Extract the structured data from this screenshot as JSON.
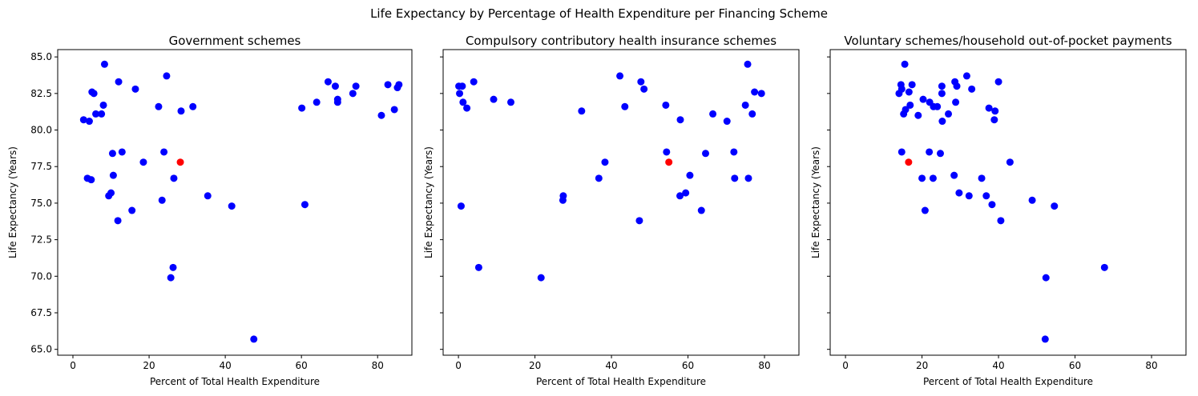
{
  "figure": {
    "suptitle": "Life Expectancy by Percentage of Health Expenditure per Financing Scheme",
    "colors": {
      "points": "#0000ff",
      "highlight": "#ff0000",
      "axes": "#000000"
    }
  },
  "chart_data": [
    {
      "type": "scatter",
      "title": "Government schemes",
      "xlabel": "Percent of Total Health Expenditure",
      "ylabel": "Life Expectancy (Years)",
      "xlim": [
        -4,
        89
      ],
      "ylim": [
        64.6,
        85.5
      ],
      "xticks": [
        0,
        20,
        40,
        60,
        80
      ],
      "yticks": [
        65.0,
        67.5,
        70.0,
        72.5,
        75.0,
        77.5,
        80.0,
        82.5,
        85.0
      ],
      "show_yticklabels": true,
      "highlight": {
        "x": 28.2,
        "y": 77.8
      },
      "points": [
        [
          2.8,
          80.7
        ],
        [
          4.3,
          80.6
        ],
        [
          5.0,
          82.6
        ],
        [
          5.5,
          82.5
        ],
        [
          6.0,
          81.1
        ],
        [
          7.5,
          81.1
        ],
        [
          8.0,
          81.7
        ],
        [
          8.3,
          84.5
        ],
        [
          3.8,
          76.7
        ],
        [
          4.8,
          76.6
        ],
        [
          9.4,
          75.5
        ],
        [
          10.0,
          75.7
        ],
        [
          10.4,
          78.4
        ],
        [
          10.6,
          76.9
        ],
        [
          11.8,
          73.8
        ],
        [
          12.0,
          83.3
        ],
        [
          12.9,
          78.5
        ],
        [
          15.5,
          74.5
        ],
        [
          16.4,
          82.8
        ],
        [
          18.5,
          77.8
        ],
        [
          22.5,
          81.6
        ],
        [
          23.4,
          75.2
        ],
        [
          23.9,
          78.5
        ],
        [
          24.6,
          83.7
        ],
        [
          25.7,
          69.9
        ],
        [
          26.3,
          70.6
        ],
        [
          26.5,
          76.7
        ],
        [
          28.4,
          81.3
        ],
        [
          31.5,
          81.6
        ],
        [
          35.4,
          75.5
        ],
        [
          41.7,
          74.8
        ],
        [
          47.5,
          65.7
        ],
        [
          60.1,
          81.5
        ],
        [
          60.9,
          74.9
        ],
        [
          64.0,
          81.9
        ],
        [
          67.0,
          83.3
        ],
        [
          68.9,
          83.0
        ],
        [
          69.5,
          82.1
        ],
        [
          69.5,
          81.9
        ],
        [
          73.5,
          82.5
        ],
        [
          74.3,
          83.0
        ],
        [
          81.0,
          81.0
        ],
        [
          82.7,
          83.1
        ],
        [
          84.4,
          81.4
        ],
        [
          85.2,
          82.9
        ],
        [
          85.6,
          83.1
        ]
      ]
    },
    {
      "type": "scatter",
      "title": "Compulsory contributory health insurance schemes",
      "xlabel": "Percent of Total Health Expenditure",
      "ylabel": "Life Expectancy (Years)",
      "xlim": [
        -4,
        89
      ],
      "ylim": [
        64.6,
        85.5
      ],
      "xticks": [
        0,
        20,
        40,
        60,
        80
      ],
      "yticks": [
        65.0,
        67.5,
        70.0,
        72.5,
        75.0,
        77.5,
        80.0,
        82.5,
        85.0
      ],
      "show_yticklabels": false,
      "highlight": {
        "x": 55.0,
        "y": 77.8
      },
      "points": [
        [
          0.1,
          83.0
        ],
        [
          0.3,
          82.5
        ],
        [
          0.7,
          74.8
        ],
        [
          1.0,
          83.0
        ],
        [
          1.2,
          81.9
        ],
        [
          2.2,
          81.5
        ],
        [
          4.0,
          83.3
        ],
        [
          5.3,
          70.6
        ],
        [
          9.2,
          82.1
        ],
        [
          13.7,
          81.9
        ],
        [
          21.6,
          69.9
        ],
        [
          27.3,
          75.2
        ],
        [
          27.4,
          75.5
        ],
        [
          32.2,
          81.3
        ],
        [
          36.7,
          76.7
        ],
        [
          38.3,
          77.8
        ],
        [
          42.2,
          83.7
        ],
        [
          43.5,
          81.6
        ],
        [
          47.3,
          73.8
        ],
        [
          47.7,
          83.3
        ],
        [
          48.5,
          82.8
        ],
        [
          54.2,
          81.7
        ],
        [
          54.4,
          78.5
        ],
        [
          58.0,
          80.7
        ],
        [
          57.9,
          75.5
        ],
        [
          59.4,
          75.7
        ],
        [
          60.5,
          76.9
        ],
        [
          63.5,
          74.5
        ],
        [
          64.6,
          78.4
        ],
        [
          66.5,
          81.1
        ],
        [
          70.2,
          80.6
        ],
        [
          72.0,
          78.5
        ],
        [
          72.2,
          76.7
        ],
        [
          75.0,
          81.7
        ],
        [
          75.6,
          84.5
        ],
        [
          75.8,
          76.7
        ],
        [
          76.8,
          81.1
        ],
        [
          77.4,
          82.6
        ],
        [
          79.2,
          82.5
        ]
      ]
    },
    {
      "type": "scatter",
      "title": "Voluntary schemes/household out-of-pocket payments",
      "xlabel": "Percent of Total Health Expenditure",
      "ylabel": "Life Expectancy (Years)",
      "xlim": [
        -4,
        89
      ],
      "ylim": [
        64.6,
        85.5
      ],
      "xticks": [
        0,
        20,
        40,
        60,
        80
      ],
      "yticks": [
        65.0,
        67.5,
        70.0,
        72.5,
        75.0,
        77.5,
        80.0,
        82.5,
        85.0
      ],
      "show_yticklabels": false,
      "highlight": {
        "x": 16.5,
        "y": 77.8
      },
      "points": [
        [
          14.0,
          82.5
        ],
        [
          14.5,
          83.1
        ],
        [
          14.7,
          82.8
        ],
        [
          14.7,
          78.5
        ],
        [
          15.2,
          81.1
        ],
        [
          15.5,
          84.5
        ],
        [
          15.7,
          81.4
        ],
        [
          16.6,
          82.6
        ],
        [
          16.9,
          81.7
        ],
        [
          17.4,
          83.1
        ],
        [
          19.0,
          81.0
        ],
        [
          20.0,
          76.7
        ],
        [
          20.3,
          82.1
        ],
        [
          20.8,
          74.5
        ],
        [
          21.9,
          78.5
        ],
        [
          22.0,
          81.9
        ],
        [
          22.9,
          76.7
        ],
        [
          23.0,
          81.6
        ],
        [
          24.0,
          81.6
        ],
        [
          24.8,
          78.4
        ],
        [
          25.2,
          83.0
        ],
        [
          25.2,
          82.5
        ],
        [
          25.3,
          80.6
        ],
        [
          26.9,
          81.1
        ],
        [
          28.4,
          76.9
        ],
        [
          28.6,
          83.3
        ],
        [
          28.8,
          81.9
        ],
        [
          29.1,
          83.0
        ],
        [
          29.7,
          75.7
        ],
        [
          31.7,
          83.7
        ],
        [
          32.3,
          75.5
        ],
        [
          33.0,
          82.8
        ],
        [
          35.6,
          76.7
        ],
        [
          36.8,
          75.5
        ],
        [
          37.5,
          81.5
        ],
        [
          38.3,
          74.9
        ],
        [
          38.9,
          80.7
        ],
        [
          39.1,
          81.3
        ],
        [
          40.0,
          83.3
        ],
        [
          40.6,
          73.8
        ],
        [
          43.0,
          77.8
        ],
        [
          48.8,
          75.2
        ],
        [
          52.2,
          65.7
        ],
        [
          52.4,
          69.9
        ],
        [
          54.6,
          74.8
        ],
        [
          67.7,
          70.6
        ]
      ]
    }
  ]
}
